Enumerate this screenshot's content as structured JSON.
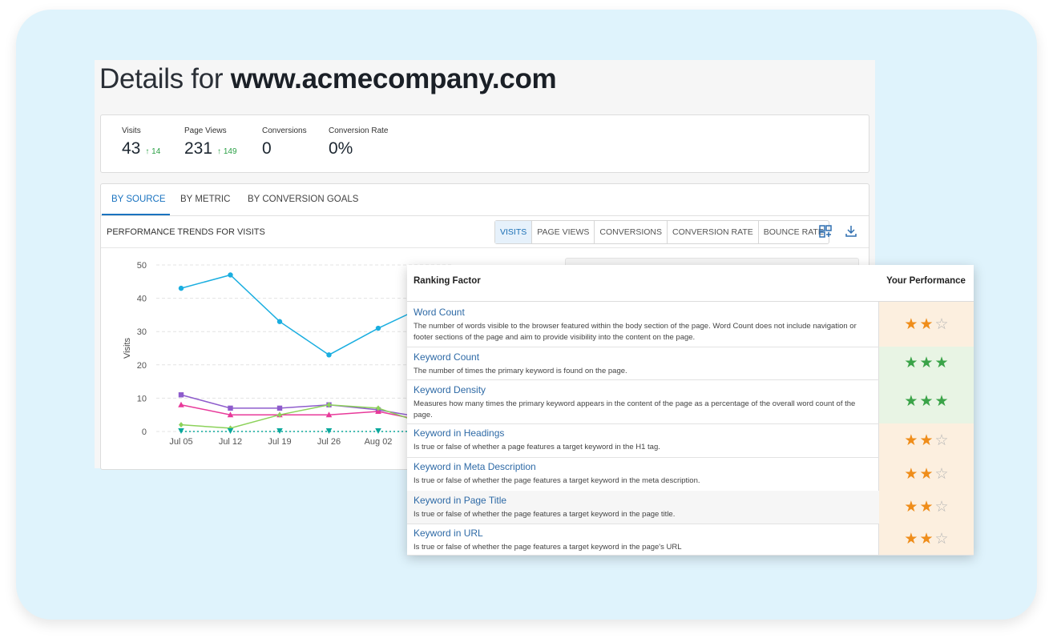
{
  "header": {
    "title_prefix": "Details for",
    "domain": "www.acmecompany.com"
  },
  "kpis": [
    {
      "label": "Visits",
      "value": "43",
      "delta": "14"
    },
    {
      "label": "Page Views",
      "value": "231",
      "delta": "149"
    },
    {
      "label": "Conversions",
      "value": "0",
      "delta": ""
    },
    {
      "label": "Conversion Rate",
      "value": "0%",
      "delta": ""
    }
  ],
  "tabs": [
    "BY SOURCE",
    "BY METRIC",
    "BY CONVERSION GOALS"
  ],
  "trends": {
    "title": "PERFORMANCE TRENDS FOR VISITS",
    "metric_buttons": [
      "VISITS",
      "PAGE VIEWS",
      "CONVERSIONS",
      "CONVERSION RATE",
      "BOUNCE RATE"
    ],
    "active_metric": "VISITS"
  },
  "chart_data": {
    "type": "line",
    "ylabel": "Visits",
    "ylim": [
      0,
      50
    ],
    "yticks": [
      0,
      10,
      20,
      30,
      40,
      50
    ],
    "x_labels": [
      "Jul 05",
      "Jul 12",
      "Jul 19",
      "Jul 26",
      "Aug 02"
    ],
    "grid": true,
    "series": [
      {
        "color": "#1aaee0",
        "marker": "circle",
        "values": [
          43,
          47,
          33,
          23,
          31,
          38
        ]
      },
      {
        "color": "#8e5ccc",
        "marker": "square",
        "values": [
          11,
          7,
          7,
          8,
          6.5,
          4
        ]
      },
      {
        "color": "#e8399a",
        "marker": "triangle",
        "values": [
          8,
          5,
          5,
          5,
          6,
          3
        ]
      },
      {
        "color": "#8cd25a",
        "marker": "diamond",
        "values": [
          2,
          1,
          5,
          8,
          7,
          2
        ]
      },
      {
        "color": "#0aa89c",
        "marker": "triangle-down",
        "values": [
          0,
          0,
          0,
          0,
          0,
          0
        ]
      }
    ]
  },
  "ranking": {
    "col_factor": "Ranking Factor",
    "col_performance": "Your Performance",
    "rows": [
      {
        "name": "Word Count",
        "desc": "The number of words visible to the browser featured within the body section of the page. Word Count does not include navigation or footer sections of the page and aim to provide visibility into the content on the page.",
        "stars": 2,
        "level": "orange"
      },
      {
        "name": "Keyword Count",
        "desc": "The number of times the primary keyword is found on the page.",
        "stars": 3,
        "level": "green"
      },
      {
        "name": "Keyword Density",
        "desc": "Measures how many times the primary keyword appears in the content of the page as a percentage of the overall word count of the page.",
        "stars": 3,
        "level": "green"
      },
      {
        "name": "Keyword in Headings",
        "desc": "Is true or false of whether a page features a target keyword in the H1 tag.",
        "stars": 2,
        "level": "orange"
      },
      {
        "name": "Keyword in Meta Description",
        "desc": "Is true or false of whether the page features a target keyword in the meta description.",
        "stars": 2,
        "level": "orange"
      },
      {
        "name": "Keyword in Page Title",
        "desc": "Is true or false of whether the page features a target keyword in the page title.",
        "stars": 2,
        "level": "orange"
      },
      {
        "name": "Keyword in URL",
        "desc": "Is true or false of whether the page features a target keyword in the page's URL",
        "stars": 2,
        "level": "orange"
      }
    ]
  },
  "colors": {
    "accent": "#1a73c0",
    "delta_up": "#2aa045",
    "star_orange": "#ef8d1a",
    "star_green": "#3aa348",
    "cell_orange": "#fcefdf",
    "cell_green": "#e8f4e4",
    "frame": "#dff3fc"
  }
}
